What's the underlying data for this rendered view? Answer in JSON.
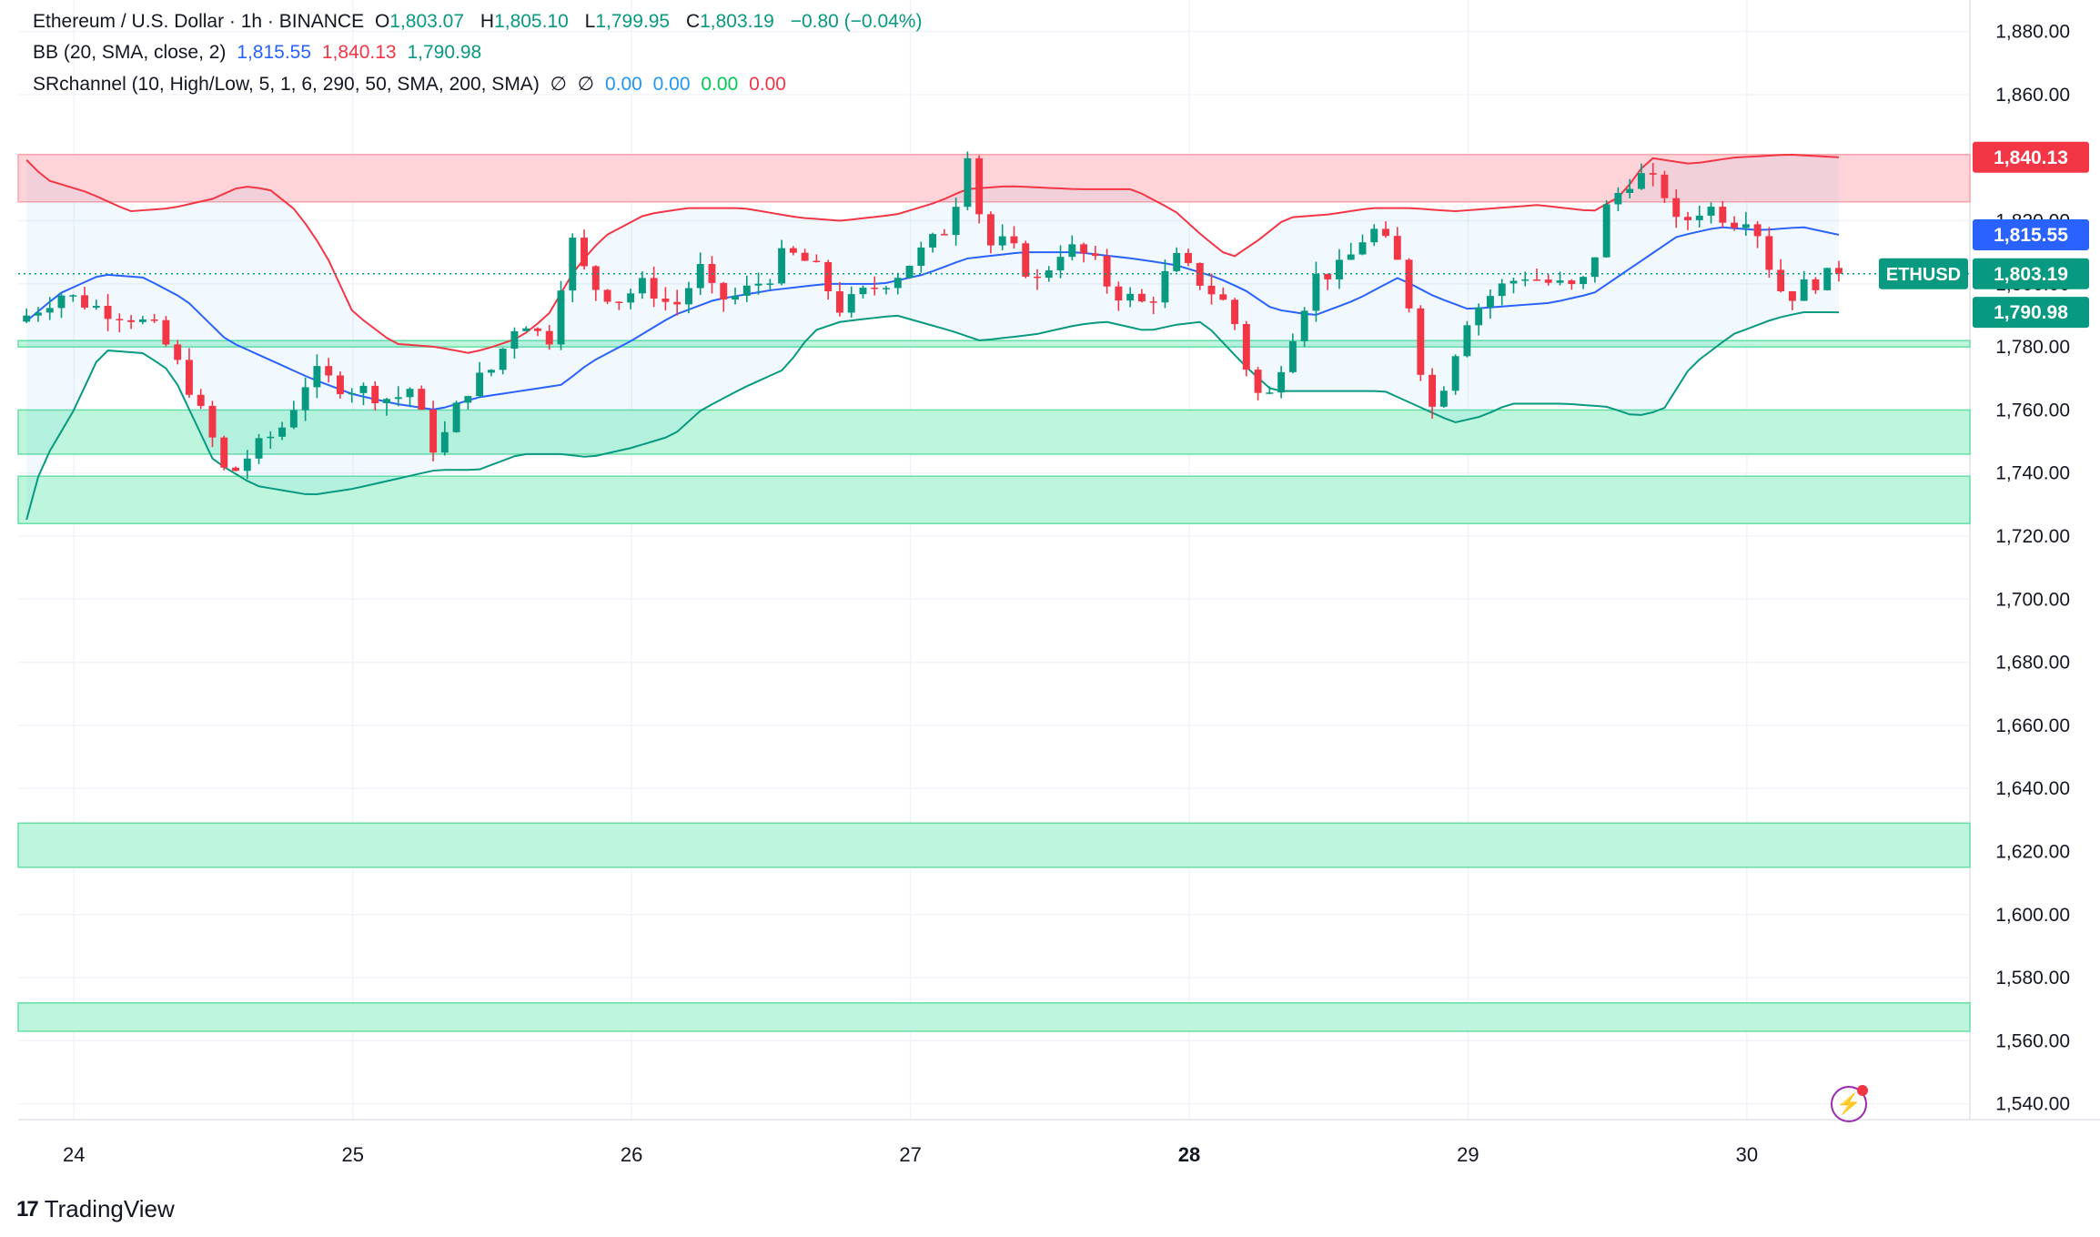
{
  "legend": {
    "title": "Ethereum / U.S. Dollar · 1h · BINANCE",
    "o_label": "O",
    "o_val": "1,803.07",
    "h_label": "H",
    "h_val": "1,805.10",
    "l_label": "L",
    "l_val": "1,799.95",
    "c_label": "C",
    "c_val": "1,803.19",
    "change": "−0.80 (−0.04%)",
    "bb_label": "BB (20, SMA, close, 2)",
    "bb_mid": "1,815.55",
    "bb_upper": "1,840.13",
    "bb_lower": "1,790.98",
    "sr_label": "SRchannel (10, High/Low, 5, 1, 6, 290, 50, SMA, 200, SMA)",
    "sr_sym1": "∅",
    "sr_sym2": "∅",
    "sr_v1": "0.00",
    "sr_v2": "0.00",
    "sr_v3": "0.00",
    "sr_v4": "0.00"
  },
  "brand": {
    "name": "TradingView",
    "logo": "17"
  },
  "icons": {
    "alert": "lightning-icon"
  },
  "colors": {
    "up": "#089981",
    "down": "#f23645",
    "bb_mid": "#2962ff",
    "bb_upper": "#f23645",
    "bb_lower": "#089981",
    "zone_green": "#b9f6da",
    "zone_red": "#ffcdd2"
  },
  "chart_data": {
    "type": "candlestick",
    "symbol": "ETHUSD",
    "timeframe": "1h",
    "ylim": [
      1535,
      1890
    ],
    "yticks": [
      1540,
      1560,
      1580,
      1600,
      1620,
      1640,
      1660,
      1680,
      1700,
      1720,
      1740,
      1760,
      1780,
      1800,
      1820,
      1840,
      1860,
      1880
    ],
    "xlim": [
      23.8,
      30.8
    ],
    "xticks": [
      {
        "x": 24,
        "label": "24"
      },
      {
        "x": 25,
        "label": "25"
      },
      {
        "x": 26,
        "label": "26"
      },
      {
        "x": 27,
        "label": "27"
      },
      {
        "x": 28,
        "label": "28"
      },
      {
        "x": 29,
        "label": "29"
      },
      {
        "x": 30,
        "label": "30"
      }
    ],
    "bold_xtick": "28",
    "last_day": 30.33,
    "price_labels": [
      {
        "label": "1,840.13",
        "value": 1840.13,
        "color": "#f23645"
      },
      {
        "label": "1,815.55",
        "value": 1815.55,
        "color": "#2962ff"
      },
      {
        "label": "1,790.98",
        "value": 1790.98,
        "color": "#089981"
      }
    ],
    "current": {
      "symbol": "ETHUSD",
      "value": 1803.19,
      "label": "1,803.19",
      "color": "#089981"
    },
    "zones": [
      {
        "top": 1841,
        "bottom": 1826,
        "color": "red"
      },
      {
        "top": 1782,
        "bottom": 1780,
        "color": "green"
      },
      {
        "top": 1760,
        "bottom": 1746,
        "color": "green"
      },
      {
        "top": 1739,
        "bottom": 1724,
        "color": "green"
      },
      {
        "top": 1629,
        "bottom": 1615,
        "color": "green"
      },
      {
        "top": 1572,
        "bottom": 1563,
        "color": "green"
      }
    ],
    "close_anchors": [
      [
        23.83,
        1790
      ],
      [
        23.95,
        1797
      ],
      [
        24.1,
        1792
      ],
      [
        24.2,
        1790
      ],
      [
        24.3,
        1785
      ],
      [
        24.4,
        1770
      ],
      [
        24.5,
        1750
      ],
      [
        24.55,
        1738
      ],
      [
        24.62,
        1745
      ],
      [
        24.75,
        1755
      ],
      [
        24.85,
        1772
      ],
      [
        24.95,
        1768
      ],
      [
        25.05,
        1766
      ],
      [
        25.15,
        1763
      ],
      [
        25.2,
        1768
      ],
      [
        25.3,
        1746
      ],
      [
        25.4,
        1766
      ],
      [
        25.5,
        1773
      ],
      [
        25.6,
        1790
      ],
      [
        25.7,
        1781
      ],
      [
        25.78,
        1815
      ],
      [
        25.85,
        1800
      ],
      [
        25.95,
        1795
      ],
      [
        26.05,
        1800
      ],
      [
        26.15,
        1792
      ],
      [
        26.25,
        1805
      ],
      [
        26.3,
        1795
      ],
      [
        26.38,
        1796
      ],
      [
        26.5,
        1803
      ],
      [
        26.55,
        1810
      ],
      [
        26.65,
        1806
      ],
      [
        26.75,
        1792
      ],
      [
        26.85,
        1798
      ],
      [
        26.95,
        1803
      ],
      [
        27.0,
        1807
      ],
      [
        27.1,
        1815
      ],
      [
        27.15,
        1820
      ],
      [
        27.2,
        1845
      ],
      [
        27.27,
        1812
      ],
      [
        27.35,
        1813
      ],
      [
        27.45,
        1800
      ],
      [
        27.55,
        1812
      ],
      [
        27.65,
        1808
      ],
      [
        27.72,
        1798
      ],
      [
        27.85,
        1793
      ],
      [
        27.95,
        1808
      ],
      [
        28.05,
        1800
      ],
      [
        28.15,
        1792
      ],
      [
        28.2,
        1775
      ],
      [
        28.27,
        1760
      ],
      [
        28.35,
        1780
      ],
      [
        28.45,
        1802
      ],
      [
        28.55,
        1805
      ],
      [
        28.65,
        1818
      ],
      [
        28.72,
        1811
      ],
      [
        28.75,
        1806
      ],
      [
        28.8,
        1790
      ],
      [
        28.85,
        1763
      ],
      [
        28.88,
        1760
      ],
      [
        28.95,
        1778
      ],
      [
        29.0,
        1790
      ],
      [
        29.1,
        1798
      ],
      [
        29.2,
        1803
      ],
      [
        29.3,
        1800
      ],
      [
        29.4,
        1798
      ],
      [
        29.45,
        1808
      ],
      [
        29.5,
        1825
      ],
      [
        29.6,
        1835
      ],
      [
        29.7,
        1830
      ],
      [
        29.75,
        1818
      ],
      [
        29.85,
        1825
      ],
      [
        29.95,
        1820
      ],
      [
        30.0,
        1822
      ],
      [
        30.05,
        1815
      ],
      [
        30.1,
        1800
      ],
      [
        30.15,
        1796
      ],
      [
        30.2,
        1799
      ],
      [
        30.25,
        1801
      ],
      [
        30.33,
        1803.19
      ]
    ],
    "bb_upper_anchors": [
      [
        23.8,
        1842
      ],
      [
        23.9,
        1833
      ],
      [
        24.05,
        1829
      ],
      [
        24.2,
        1823
      ],
      [
        24.35,
        1824
      ],
      [
        24.5,
        1827
      ],
      [
        24.6,
        1831
      ],
      [
        24.7,
        1830
      ],
      [
        24.8,
        1823
      ],
      [
        24.9,
        1810
      ],
      [
        25.0,
        1791
      ],
      [
        25.15,
        1781
      ],
      [
        25.3,
        1780
      ],
      [
        25.42,
        1778
      ],
      [
        25.5,
        1780
      ],
      [
        25.6,
        1783
      ],
      [
        25.7,
        1790
      ],
      [
        25.8,
        1805
      ],
      [
        25.9,
        1815
      ],
      [
        26.05,
        1822
      ],
      [
        26.2,
        1824
      ],
      [
        26.4,
        1824
      ],
      [
        26.6,
        1821
      ],
      [
        26.75,
        1820
      ],
      [
        26.95,
        1822
      ],
      [
        27.1,
        1826
      ],
      [
        27.2,
        1830
      ],
      [
        27.35,
        1831
      ],
      [
        27.6,
        1830
      ],
      [
        27.8,
        1830
      ],
      [
        27.95,
        1823
      ],
      [
        28.05,
        1815
      ],
      [
        28.15,
        1808
      ],
      [
        28.25,
        1814
      ],
      [
        28.35,
        1821
      ],
      [
        28.5,
        1822
      ],
      [
        28.65,
        1824
      ],
      [
        28.8,
        1824
      ],
      [
        28.95,
        1823
      ],
      [
        29.1,
        1824
      ],
      [
        29.25,
        1825
      ],
      [
        29.45,
        1823
      ],
      [
        29.55,
        1828
      ],
      [
        29.65,
        1840
      ],
      [
        29.8,
        1838
      ],
      [
        29.95,
        1840
      ],
      [
        30.15,
        1841
      ],
      [
        30.33,
        1840.13
      ]
    ],
    "bb_mid_anchors": [
      [
        23.8,
        1786
      ],
      [
        23.95,
        1797
      ],
      [
        24.1,
        1803
      ],
      [
        24.25,
        1802
      ],
      [
        24.4,
        1795
      ],
      [
        24.55,
        1782
      ],
      [
        24.7,
        1776
      ],
      [
        24.85,
        1770
      ],
      [
        25.0,
        1765
      ],
      [
        25.15,
        1762
      ],
      [
        25.3,
        1760
      ],
      [
        25.45,
        1764
      ],
      [
        25.6,
        1766
      ],
      [
        25.75,
        1768
      ],
      [
        25.85,
        1775
      ],
      [
        26.0,
        1782
      ],
      [
        26.15,
        1790
      ],
      [
        26.3,
        1795
      ],
      [
        26.5,
        1798
      ],
      [
        26.7,
        1800
      ],
      [
        26.9,
        1800
      ],
      [
        27.05,
        1803
      ],
      [
        27.2,
        1808
      ],
      [
        27.4,
        1810
      ],
      [
        27.6,
        1810
      ],
      [
        27.8,
        1808
      ],
      [
        27.95,
        1806
      ],
      [
        28.1,
        1802
      ],
      [
        28.2,
        1798
      ],
      [
        28.3,
        1792
      ],
      [
        28.45,
        1790
      ],
      [
        28.6,
        1795
      ],
      [
        28.75,
        1802
      ],
      [
        28.88,
        1796
      ],
      [
        29.0,
        1792
      ],
      [
        29.15,
        1793
      ],
      [
        29.3,
        1794
      ],
      [
        29.45,
        1797
      ],
      [
        29.6,
        1806
      ],
      [
        29.75,
        1815
      ],
      [
        29.9,
        1818
      ],
      [
        30.05,
        1817
      ],
      [
        30.2,
        1818
      ],
      [
        30.33,
        1815.55
      ]
    ],
    "bb_lower_anchors": [
      [
        23.8,
        1712
      ],
      [
        23.85,
        1734
      ],
      [
        23.9,
        1745
      ],
      [
        24.0,
        1760
      ],
      [
        24.1,
        1779
      ],
      [
        24.25,
        1778
      ],
      [
        24.35,
        1772
      ],
      [
        24.5,
        1744
      ],
      [
        24.65,
        1736
      ],
      [
        24.85,
        1733
      ],
      [
        25.0,
        1735
      ],
      [
        25.15,
        1738
      ],
      [
        25.3,
        1741
      ],
      [
        25.45,
        1741
      ],
      [
        25.6,
        1746
      ],
      [
        25.75,
        1746
      ],
      [
        25.85,
        1745
      ],
      [
        26.0,
        1748
      ],
      [
        26.15,
        1752
      ],
      [
        26.25,
        1760
      ],
      [
        26.4,
        1767
      ],
      [
        26.55,
        1773
      ],
      [
        26.65,
        1785
      ],
      [
        26.75,
        1788
      ],
      [
        26.95,
        1790
      ],
      [
        27.15,
        1785
      ],
      [
        27.25,
        1782
      ],
      [
        27.45,
        1784
      ],
      [
        27.6,
        1787
      ],
      [
        27.7,
        1788
      ],
      [
        27.85,
        1785
      ],
      [
        27.95,
        1787
      ],
      [
        28.05,
        1788
      ],
      [
        28.2,
        1774
      ],
      [
        28.3,
        1766
      ],
      [
        28.5,
        1766
      ],
      [
        28.7,
        1766
      ],
      [
        28.85,
        1760
      ],
      [
        28.95,
        1756
      ],
      [
        29.05,
        1758
      ],
      [
        29.15,
        1762
      ],
      [
        29.35,
        1762
      ],
      [
        29.5,
        1761
      ],
      [
        29.6,
        1758
      ],
      [
        29.7,
        1760
      ],
      [
        29.8,
        1774
      ],
      [
        29.95,
        1784
      ],
      [
        30.1,
        1789
      ],
      [
        30.2,
        1791
      ],
      [
        30.33,
        1790.98
      ]
    ]
  }
}
